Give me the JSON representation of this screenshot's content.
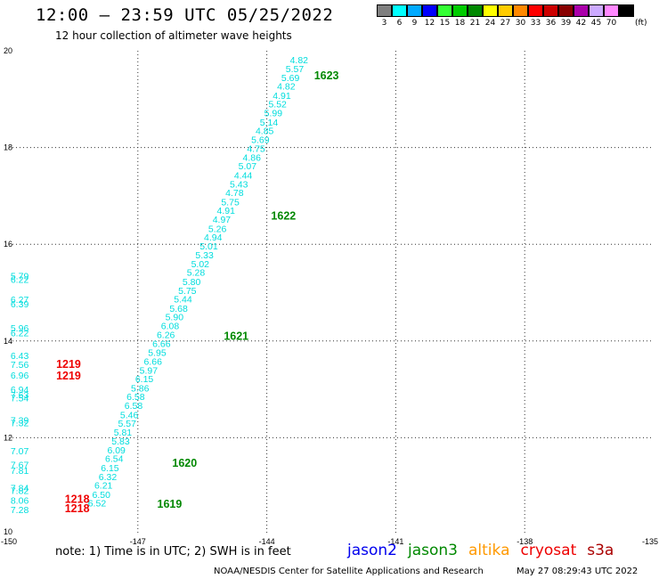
{
  "header": {
    "title": "12:00 – 23:59 UTC 05/25/2022",
    "subtitle": "12 hour collection of altimeter wave heights"
  },
  "colorbar": {
    "unit": "(ft)",
    "bins": [
      {
        "label": "3",
        "color": "#7f7f7f"
      },
      {
        "label": "6",
        "color": "#00ffff"
      },
      {
        "label": "9",
        "color": "#00aaff"
      },
      {
        "label": "12",
        "color": "#0000ff"
      },
      {
        "label": "15",
        "color": "#33ff33"
      },
      {
        "label": "18",
        "color": "#00cc00"
      },
      {
        "label": "21",
        "color": "#008800"
      },
      {
        "label": "24",
        "color": "#ffff00"
      },
      {
        "label": "27",
        "color": "#ffcc00"
      },
      {
        "label": "30",
        "color": "#ff8800"
      },
      {
        "label": "33",
        "color": "#ff0000"
      },
      {
        "label": "36",
        "color": "#cc0000"
      },
      {
        "label": "39",
        "color": "#880000"
      },
      {
        "label": "42",
        "color": "#aa00aa"
      },
      {
        "label": "45",
        "color": "#ccaaff"
      },
      {
        "label": "70",
        "color": "#ff88ff"
      },
      {
        "label": "",
        "color": "#000000"
      }
    ]
  },
  "chart_data": {
    "type": "scatter",
    "xlim": [
      -150,
      -135
    ],
    "ylim": [
      10,
      20
    ],
    "x_ticks": [
      "-150",
      "-147",
      "-144",
      "-141",
      "-138",
      "-135"
    ],
    "y_ticks": [
      "10",
      "12",
      "14",
      "16",
      "18",
      "20"
    ],
    "grid": true,
    "colors": {
      "swh": "#00dddd",
      "time_jason3": "#008800",
      "time_cryosat": "#ee0000"
    },
    "swh_points": [
      {
        "lon": -143.25,
        "lat": 19.82,
        "v": "4.82"
      },
      {
        "lon": -143.35,
        "lat": 19.63,
        "v": "5.57"
      },
      {
        "lon": -143.45,
        "lat": 19.45,
        "v": "5.69"
      },
      {
        "lon": -143.55,
        "lat": 19.27,
        "v": "4.82"
      },
      {
        "lon": -143.65,
        "lat": 19.08,
        "v": "4.91"
      },
      {
        "lon": -143.75,
        "lat": 18.9,
        "v": "5.52"
      },
      {
        "lon": -143.85,
        "lat": 18.72,
        "v": "5.99"
      },
      {
        "lon": -143.95,
        "lat": 18.53,
        "v": "5.14"
      },
      {
        "lon": -144.05,
        "lat": 18.35,
        "v": "4.85"
      },
      {
        "lon": -144.15,
        "lat": 18.17,
        "v": "5.69"
      },
      {
        "lon": -144.25,
        "lat": 17.98,
        "v": "4.75"
      },
      {
        "lon": -144.35,
        "lat": 17.8,
        "v": "4.86"
      },
      {
        "lon": -144.45,
        "lat": 17.62,
        "v": "5.07"
      },
      {
        "lon": -144.55,
        "lat": 17.43,
        "v": "4.44"
      },
      {
        "lon": -144.65,
        "lat": 17.25,
        "v": "5.43"
      },
      {
        "lon": -144.75,
        "lat": 17.07,
        "v": "4.78"
      },
      {
        "lon": -144.85,
        "lat": 16.88,
        "v": "5.75"
      },
      {
        "lon": -144.95,
        "lat": 16.7,
        "v": "4.91"
      },
      {
        "lon": -145.05,
        "lat": 16.52,
        "v": "4.97"
      },
      {
        "lon": -145.15,
        "lat": 16.33,
        "v": "5.26"
      },
      {
        "lon": -145.25,
        "lat": 16.15,
        "v": "4.94"
      },
      {
        "lon": -145.35,
        "lat": 15.97,
        "v": "5.01"
      },
      {
        "lon": -145.45,
        "lat": 15.78,
        "v": "5.33"
      },
      {
        "lon": -145.55,
        "lat": 15.6,
        "v": "5.02"
      },
      {
        "lon": -145.65,
        "lat": 15.42,
        "v": "5.28"
      },
      {
        "lon": -145.75,
        "lat": 15.23,
        "v": "5.80"
      },
      {
        "lon": -145.85,
        "lat": 15.05,
        "v": "5.75"
      },
      {
        "lon": -145.95,
        "lat": 14.87,
        "v": "5.44"
      },
      {
        "lon": -146.05,
        "lat": 14.68,
        "v": "5.68"
      },
      {
        "lon": -146.15,
        "lat": 14.5,
        "v": "5.90"
      },
      {
        "lon": -146.25,
        "lat": 14.32,
        "v": "6.08"
      },
      {
        "lon": -146.35,
        "lat": 14.13,
        "v": "6.26"
      },
      {
        "lon": -146.45,
        "lat": 13.95,
        "v": "6.66"
      },
      {
        "lon": -146.55,
        "lat": 13.77,
        "v": "5.95"
      },
      {
        "lon": -146.65,
        "lat": 13.58,
        "v": "6.66"
      },
      {
        "lon": -146.75,
        "lat": 13.4,
        "v": "5.97"
      },
      {
        "lon": -146.85,
        "lat": 13.22,
        "v": "6.15"
      },
      {
        "lon": -146.95,
        "lat": 13.03,
        "v": "5.86"
      },
      {
        "lon": -147.05,
        "lat": 12.85,
        "v": "6.58"
      },
      {
        "lon": -147.1,
        "lat": 12.67,
        "v": "6.58"
      },
      {
        "lon": -147.2,
        "lat": 12.48,
        "v": "5.46"
      },
      {
        "lon": -147.25,
        "lat": 12.3,
        "v": "5.57"
      },
      {
        "lon": -147.35,
        "lat": 12.12,
        "v": "5.81"
      },
      {
        "lon": -147.4,
        "lat": 11.93,
        "v": "5.83"
      },
      {
        "lon": -147.5,
        "lat": 11.75,
        "v": "6.09"
      },
      {
        "lon": -147.55,
        "lat": 11.57,
        "v": "6.54"
      },
      {
        "lon": -147.65,
        "lat": 11.38,
        "v": "6.15"
      },
      {
        "lon": -147.7,
        "lat": 11.2,
        "v": "6.32"
      },
      {
        "lon": -147.8,
        "lat": 11.02,
        "v": "6.21"
      },
      {
        "lon": -147.85,
        "lat": 10.83,
        "v": "6.50"
      },
      {
        "lon": -147.95,
        "lat": 10.65,
        "v": "6.52"
      },
      {
        "lon": -149.75,
        "lat": 15.35,
        "v": "5.79"
      },
      {
        "lon": -149.75,
        "lat": 15.28,
        "v": "6.22"
      },
      {
        "lon": -149.75,
        "lat": 14.86,
        "v": "6.27"
      },
      {
        "lon": -149.75,
        "lat": 14.77,
        "v": "6.39"
      },
      {
        "lon": -149.75,
        "lat": 14.27,
        "v": "5.96"
      },
      {
        "lon": -149.75,
        "lat": 14.17,
        "v": "6.22"
      },
      {
        "lon": -149.75,
        "lat": 13.7,
        "v": "6.43"
      },
      {
        "lon": -149.75,
        "lat": 13.52,
        "v": "7.56"
      },
      {
        "lon": -149.75,
        "lat": 13.3,
        "v": "6.96"
      },
      {
        "lon": -149.75,
        "lat": 13.0,
        "v": "6.94"
      },
      {
        "lon": -149.75,
        "lat": 12.89,
        "v": "7.63"
      },
      {
        "lon": -149.75,
        "lat": 12.83,
        "v": "7.54"
      },
      {
        "lon": -149.75,
        "lat": 12.37,
        "v": "7.39"
      },
      {
        "lon": -149.75,
        "lat": 12.31,
        "v": "7.32"
      },
      {
        "lon": -149.75,
        "lat": 11.73,
        "v": "7.07"
      },
      {
        "lon": -149.75,
        "lat": 11.45,
        "v": "7.67"
      },
      {
        "lon": -149.75,
        "lat": 11.33,
        "v": "7.81"
      },
      {
        "lon": -149.75,
        "lat": 10.97,
        "v": "7.84"
      },
      {
        "lon": -149.75,
        "lat": 10.91,
        "v": "7.82"
      },
      {
        "lon": -149.75,
        "lat": 10.71,
        "v": "8.06"
      },
      {
        "lon": -149.75,
        "lat": 10.52,
        "v": "7.28"
      }
    ],
    "time_labels": [
      {
        "lon": -142.9,
        "lat": 19.48,
        "v": "1623",
        "mission": "jason3"
      },
      {
        "lon": -143.9,
        "lat": 16.58,
        "v": "1622",
        "mission": "jason3"
      },
      {
        "lon": -145.0,
        "lat": 14.1,
        "v": "1621",
        "mission": "jason3"
      },
      {
        "lon": -146.2,
        "lat": 11.47,
        "v": "1620",
        "mission": "jason3"
      },
      {
        "lon": -146.55,
        "lat": 10.63,
        "v": "1619",
        "mission": "jason3"
      },
      {
        "lon": -148.9,
        "lat": 13.52,
        "v": "1219",
        "mission": "cryosat"
      },
      {
        "lon": -148.9,
        "lat": 13.28,
        "v": "1219",
        "mission": "cryosat"
      },
      {
        "lon": -148.7,
        "lat": 10.73,
        "v": "1218",
        "mission": "cryosat"
      },
      {
        "lon": -148.7,
        "lat": 10.53,
        "v": "1218",
        "mission": "cryosat"
      }
    ]
  },
  "notes": {
    "text": "note:  1) Time is in UTC;  2) SWH is in feet"
  },
  "legend": {
    "missions": [
      {
        "name": "jason2",
        "color": "#0000ee"
      },
      {
        "name": "jason3",
        "color": "#008800"
      },
      {
        "name": "altika",
        "color": "#ff9900"
      },
      {
        "name": "cryosat",
        "color": "#ee0000"
      },
      {
        "name": "s3a",
        "color": "#aa0000"
      }
    ]
  },
  "footer": {
    "agency": "NOAA/NESDIS Center for Satellite Applications and Research",
    "timestamp": "May 27 08:29:43 UTC 2022"
  }
}
